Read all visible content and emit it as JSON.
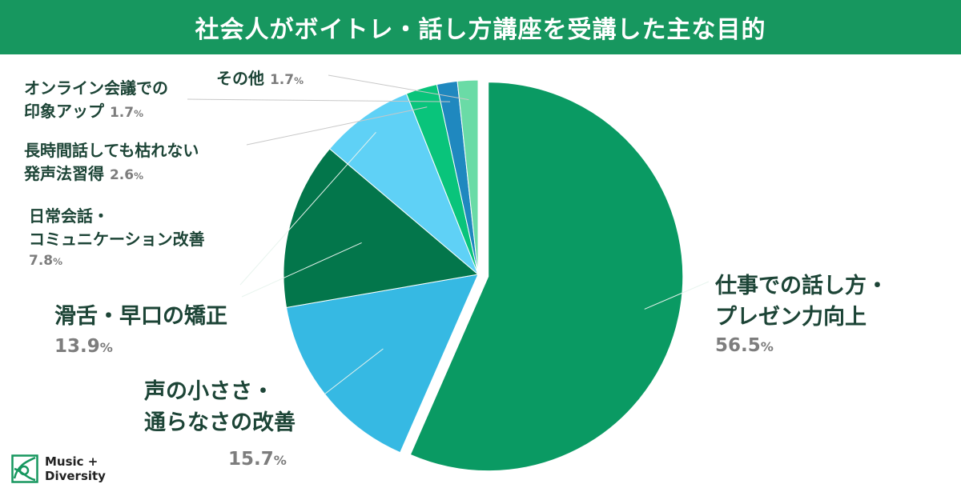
{
  "title": "社会人がボイトレ・話し方講座を受講した主な目的",
  "percent_unit": "%",
  "brand": {
    "line1": "Music +",
    "line2": "Diversity"
  },
  "colors": {
    "header": "#17975f"
  },
  "chart_data": {
    "type": "pie",
    "title": "社会人がボイトレ・話し方講座を受講した主な目的",
    "slices": [
      {
        "label_lines": [
          "仕事での話し方・",
          "プレゼン力向上"
        ],
        "value": 56.5,
        "color": "#0a9a63"
      },
      {
        "label_lines": [
          "声の小ささ・",
          "通らなさの改善"
        ],
        "value": 15.7,
        "color": "#36b9e3"
      },
      {
        "label_lines": [
          "滑舌・早口の矯正"
        ],
        "value": 13.9,
        "color": "#03764b"
      },
      {
        "label_lines": [
          "日常会話・",
          "コミュニケーション改善"
        ],
        "value": 7.8,
        "color": "#5fd1f6"
      },
      {
        "label_lines": [
          "長時間話しても枯れない",
          "発声法習得"
        ],
        "value": 2.6,
        "color": "#09c47b"
      },
      {
        "label_lines": [
          "オンライン会議での",
          "印象アップ"
        ],
        "value": 1.7,
        "color": "#1f88bf"
      },
      {
        "label_lines": [
          "その他"
        ],
        "value": 1.7,
        "color": "#6adba6"
      }
    ]
  }
}
